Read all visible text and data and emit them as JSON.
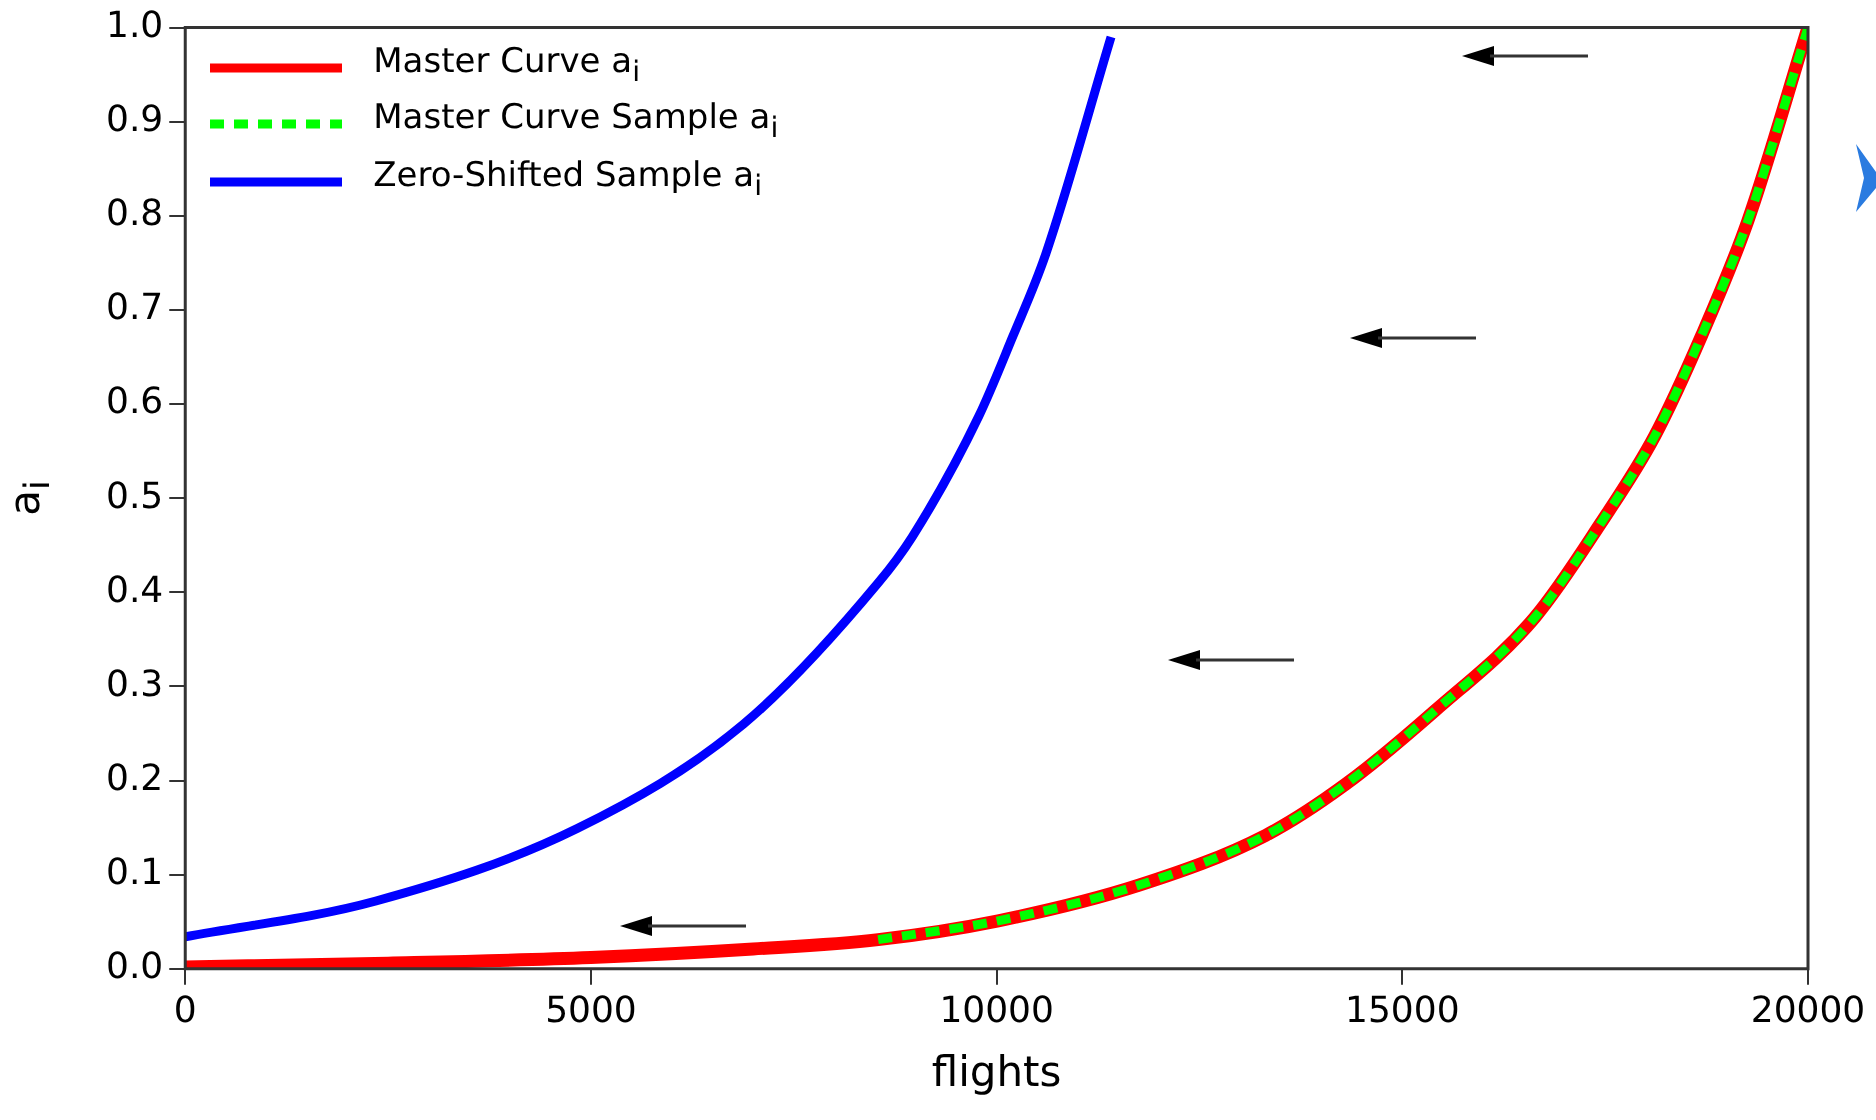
{
  "chart_data": {
    "type": "line",
    "xlabel": "flights",
    "ylabel": "a$_{i}$",
    "legend": "top left",
    "grid": false,
    "line_style": "solid",
    "marker": "none",
    "xlim": [
      0,
      20000
    ],
    "xticks": [
      0,
      5000,
      10000,
      15000,
      20000
    ],
    "ylim": [
      0,
      1
    ],
    "yticks": [
      {
        "value": 0,
        "label": "0.0"
      },
      0.1,
      0.2,
      0.3,
      0.4,
      0.5,
      0.6,
      0.7,
      0.8,
      0.9,
      {
        "value": 1,
        "label": "1.0"
      }
    ],
    "series": [
      {
        "name": "Master Curve a$_{i}$",
        "color": "#ff0000",
        "x": [
          0,
          2500,
          5000,
          7000,
          8540,
          10020,
          11760,
          13320,
          14300,
          15400,
          16630,
          17450,
          18110,
          18690,
          19260,
          20000
        ],
        "values": [
          0.002,
          0.006,
          0.012,
          0.021,
          0.031,
          0.051,
          0.089,
          0.142,
          0.196,
          0.274,
          0.373,
          0.474,
          0.566,
          0.673,
          0.795,
          1.0
        ]
      },
      {
        "name": "Master Curve Sample a$_{i}$",
        "color": "#00ff00",
        "line_style": "dashed",
        "x": [
          8540,
          10020,
          11760,
          13320,
          14300,
          15400,
          16630,
          17450,
          18110,
          18690,
          19260,
          20000
        ],
        "values": [
          0.031,
          0.051,
          0.089,
          0.142,
          0.196,
          0.274,
          0.373,
          0.474,
          0.566,
          0.673,
          0.795,
          1.0
        ]
      },
      {
        "name": "Zero-Shifted Sample a$_{i}$",
        "color": "#0000ff",
        "x": [
          0,
          2350,
          4830,
          6880,
          8540,
          8960,
          9780,
          10200,
          10600,
          11410
        ],
        "values": [
          0.034,
          0.072,
          0.149,
          0.26,
          0.41,
          0.459,
          0.587,
          0.672,
          0.758,
          0.99
        ]
      }
    ]
  }
}
